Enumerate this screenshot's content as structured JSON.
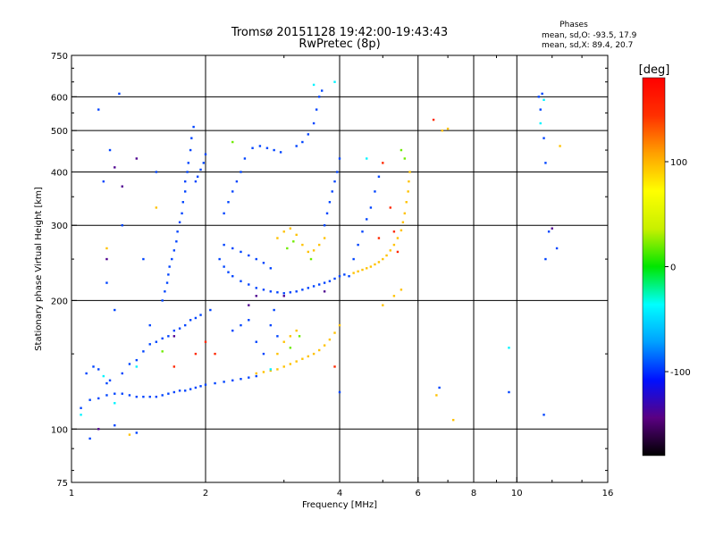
{
  "chart_data": {
    "type": "scatter",
    "title": "Tromsø 20151128 19:42:00-19:43:43",
    "subtitle": "RwPretec (8p)",
    "legend_title": "Phases",
    "legend_lines": [
      "mean, sd,O: -93.5, 17.9",
      "mean, sd,X:  89.4, 20.7"
    ],
    "xlabel": "Frequency [MHz]",
    "ylabel": "Stationary phase Virtual Height [km]",
    "xscale": "log",
    "yscale": "log",
    "xlim": [
      1,
      16
    ],
    "ylim": [
      75,
      750
    ],
    "xticks": [
      {
        "value": 1,
        "label": "1"
      },
      {
        "value": 2,
        "label": "2"
      },
      {
        "value": 4,
        "label": "4"
      },
      {
        "value": 6,
        "label": "6"
      },
      {
        "value": 8,
        "label": "8"
      },
      {
        "value": 10,
        "label": "10"
      },
      {
        "value": 16,
        "label": "16"
      }
    ],
    "xgrid": [
      2,
      4,
      6,
      8,
      10
    ],
    "yticks": [
      {
        "value": 75,
        "label": "75"
      },
      {
        "value": 100,
        "label": "100"
      },
      {
        "value": 200,
        "label": "200"
      },
      {
        "value": 300,
        "label": "300"
      },
      {
        "value": 400,
        "label": "400"
      },
      {
        "value": 500,
        "label": "500"
      },
      {
        "value": 600,
        "label": "600"
      },
      {
        "value": 750,
        "label": "750"
      }
    ],
    "ygrid": [
      100,
      200,
      300,
      400,
      500,
      600
    ],
    "grid": true,
    "colorbar": {
      "label": "[deg]",
      "range": [
        -180,
        180
      ],
      "ticks": [
        {
          "value": 100,
          "label": "100"
        },
        {
          "value": 0,
          "label": "0"
        },
        {
          "value": -100,
          "label": "-100"
        }
      ],
      "colors": [
        "#000000",
        "#5a0082",
        "#0010ff",
        "#00a0ff",
        "#00ffff",
        "#00e600",
        "#c8f000",
        "#ffff00",
        "#ffa000",
        "#ff3000",
        "#ff0000"
      ]
    },
    "series": [
      {
        "phase": -95,
        "points": [
          [
            1.05,
            112
          ],
          [
            1.1,
            117
          ],
          [
            1.15,
            118
          ],
          [
            1.2,
            120
          ],
          [
            1.25,
            121
          ],
          [
            1.3,
            121
          ],
          [
            1.35,
            120
          ],
          [
            1.4,
            119
          ],
          [
            1.45,
            119
          ],
          [
            1.5,
            119
          ],
          [
            1.55,
            119
          ],
          [
            1.6,
            120
          ],
          [
            1.65,
            121
          ],
          [
            1.7,
            122
          ],
          [
            1.75,
            123
          ],
          [
            1.8,
            123
          ],
          [
            1.85,
            124
          ],
          [
            1.9,
            125
          ],
          [
            1.95,
            126
          ],
          [
            2.0,
            127
          ],
          [
            2.1,
            128
          ],
          [
            2.2,
            129
          ],
          [
            2.3,
            130
          ],
          [
            2.4,
            131
          ],
          [
            2.5,
            132
          ],
          [
            2.6,
            133
          ],
          [
            1.08,
            135
          ],
          [
            1.12,
            140
          ],
          [
            1.15,
            138
          ],
          [
            1.2,
            128
          ],
          [
            1.22,
            130
          ],
          [
            1.3,
            135
          ],
          [
            1.35,
            142
          ],
          [
            1.4,
            145
          ],
          [
            1.45,
            152
          ],
          [
            1.5,
            158
          ],
          [
            1.55,
            160
          ],
          [
            1.6,
            163
          ],
          [
            1.65,
            165
          ],
          [
            1.7,
            170
          ],
          [
            1.75,
            172
          ],
          [
            1.8,
            175
          ],
          [
            1.85,
            180
          ],
          [
            1.9,
            182
          ],
          [
            1.95,
            185
          ],
          [
            2.05,
            190
          ],
          [
            1.6,
            200
          ],
          [
            1.62,
            210
          ],
          [
            1.64,
            220
          ],
          [
            1.65,
            230
          ],
          [
            1.66,
            240
          ],
          [
            1.68,
            250
          ],
          [
            1.7,
            262
          ],
          [
            1.72,
            275
          ],
          [
            1.73,
            290
          ],
          [
            1.75,
            305
          ],
          [
            1.77,
            320
          ],
          [
            1.78,
            340
          ],
          [
            1.8,
            360
          ],
          [
            1.8,
            380
          ],
          [
            1.82,
            400
          ],
          [
            1.83,
            420
          ],
          [
            1.85,
            450
          ],
          [
            1.86,
            480
          ],
          [
            1.88,
            510
          ],
          [
            1.9,
            380
          ],
          [
            1.92,
            390
          ],
          [
            1.95,
            405
          ],
          [
            1.98,
            420
          ],
          [
            2.0,
            440
          ],
          [
            2.15,
            250
          ],
          [
            2.2,
            240
          ],
          [
            2.25,
            233
          ],
          [
            2.3,
            228
          ],
          [
            2.4,
            222
          ],
          [
            2.5,
            218
          ],
          [
            2.6,
            214
          ],
          [
            2.7,
            212
          ],
          [
            2.8,
            210
          ],
          [
            2.9,
            209
          ],
          [
            3.0,
            208
          ],
          [
            3.1,
            209
          ],
          [
            3.2,
            210
          ],
          [
            3.3,
            212
          ],
          [
            3.4,
            214
          ],
          [
            3.5,
            216
          ],
          [
            3.6,
            218
          ],
          [
            3.7,
            220
          ],
          [
            3.8,
            222
          ],
          [
            3.9,
            225
          ],
          [
            4.0,
            228
          ],
          [
            4.1,
            230
          ],
          [
            4.2,
            228
          ],
          [
            2.2,
            270
          ],
          [
            2.3,
            265
          ],
          [
            2.4,
            260
          ],
          [
            2.5,
            255
          ],
          [
            2.6,
            250
          ],
          [
            2.7,
            245
          ],
          [
            2.8,
            238
          ],
          [
            2.2,
            320
          ],
          [
            2.25,
            340
          ],
          [
            2.3,
            360
          ],
          [
            2.35,
            380
          ],
          [
            2.4,
            400
          ],
          [
            2.45,
            430
          ],
          [
            2.55,
            455
          ],
          [
            2.65,
            460
          ],
          [
            2.75,
            455
          ],
          [
            2.85,
            450
          ],
          [
            2.95,
            445
          ],
          [
            3.2,
            460
          ],
          [
            3.3,
            470
          ],
          [
            3.4,
            490
          ],
          [
            3.5,
            520
          ],
          [
            3.55,
            560
          ],
          [
            3.6,
            600
          ],
          [
            3.65,
            620
          ],
          [
            3.7,
            300
          ],
          [
            3.75,
            320
          ],
          [
            3.8,
            340
          ],
          [
            3.85,
            360
          ],
          [
            3.9,
            380
          ],
          [
            3.95,
            400
          ],
          [
            4.0,
            430
          ],
          [
            4.3,
            250
          ],
          [
            4.4,
            270
          ],
          [
            4.5,
            290
          ],
          [
            4.6,
            310
          ],
          [
            4.7,
            330
          ],
          [
            4.8,
            360
          ],
          [
            4.9,
            390
          ],
          [
            2.3,
            170
          ],
          [
            2.4,
            175
          ],
          [
            2.5,
            180
          ],
          [
            2.6,
            160
          ],
          [
            2.7,
            150
          ],
          [
            2.8,
            175
          ],
          [
            2.85,
            190
          ],
          [
            2.9,
            165
          ],
          [
            1.1,
            95
          ],
          [
            1.25,
            102
          ],
          [
            1.4,
            98
          ],
          [
            1.2,
            220
          ],
          [
            1.25,
            190
          ],
          [
            1.3,
            300
          ],
          [
            1.18,
            380
          ],
          [
            1.22,
            450
          ],
          [
            1.15,
            560
          ],
          [
            1.28,
            610
          ],
          [
            1.5,
            175
          ],
          [
            1.45,
            250
          ],
          [
            1.55,
            400
          ],
          [
            11.2,
            600
          ],
          [
            11.3,
            560
          ],
          [
            11.4,
            610
          ],
          [
            11.5,
            480
          ],
          [
            11.6,
            420
          ],
          [
            11.6,
            250
          ],
          [
            11.8,
            290
          ],
          [
            12.3,
            265
          ],
          [
            11.5,
            108
          ],
          [
            9.6,
            122
          ],
          [
            4.0,
            122
          ],
          [
            6.7,
            125
          ]
        ]
      },
      {
        "phase": 95,
        "points": [
          [
            2.6,
            135
          ],
          [
            2.7,
            136
          ],
          [
            2.8,
            137
          ],
          [
            2.9,
            138
          ],
          [
            3.0,
            140
          ],
          [
            3.1,
            142
          ],
          [
            3.2,
            144
          ],
          [
            3.3,
            146
          ],
          [
            3.4,
            148
          ],
          [
            3.5,
            150
          ],
          [
            3.6,
            153
          ],
          [
            3.7,
            157
          ],
          [
            3.8,
            162
          ],
          [
            3.9,
            168
          ],
          [
            4.0,
            175
          ],
          [
            4.3,
            232
          ],
          [
            4.4,
            234
          ],
          [
            4.5,
            236
          ],
          [
            4.6,
            238
          ],
          [
            4.7,
            240
          ],
          [
            4.8,
            243
          ],
          [
            4.9,
            246
          ],
          [
            5.0,
            250
          ],
          [
            5.1,
            255
          ],
          [
            5.2,
            262
          ],
          [
            5.3,
            270
          ],
          [
            5.4,
            280
          ],
          [
            5.5,
            292
          ],
          [
            5.55,
            305
          ],
          [
            5.6,
            320
          ],
          [
            5.65,
            340
          ],
          [
            5.7,
            360
          ],
          [
            5.72,
            380
          ],
          [
            5.75,
            400
          ],
          [
            2.9,
            280
          ],
          [
            3.0,
            290
          ],
          [
            3.1,
            295
          ],
          [
            3.2,
            285
          ],
          [
            3.3,
            270
          ],
          [
            3.4,
            260
          ],
          [
            3.5,
            262
          ],
          [
            3.6,
            270
          ],
          [
            3.7,
            280
          ],
          [
            3.0,
            160
          ],
          [
            3.1,
            165
          ],
          [
            3.2,
            170
          ],
          [
            2.9,
            150
          ],
          [
            5.0,
            195
          ],
          [
            5.3,
            205
          ],
          [
            5.5,
            212
          ],
          [
            6.6,
            120
          ],
          [
            7.2,
            105
          ],
          [
            6.8,
            500
          ],
          [
            7.0,
            505
          ],
          [
            12.5,
            460
          ],
          [
            1.35,
            97
          ],
          [
            1.55,
            330
          ],
          [
            1.2,
            265
          ]
        ]
      },
      {
        "phase": 20,
        "points": [
          [
            3.05,
            265
          ],
          [
            3.15,
            275
          ],
          [
            3.1,
            155
          ],
          [
            3.25,
            165
          ],
          [
            5.5,
            450
          ],
          [
            5.6,
            430
          ],
          [
            1.6,
            152
          ],
          [
            3.45,
            250
          ],
          [
            2.3,
            470
          ]
        ]
      },
      {
        "phase": -40,
        "points": [
          [
            1.18,
            133
          ],
          [
            1.4,
            140
          ],
          [
            1.25,
            115
          ],
          [
            11.5,
            590
          ],
          [
            11.3,
            520
          ],
          [
            9.6,
            155
          ],
          [
            3.9,
            650
          ],
          [
            3.5,
            640
          ],
          [
            4.6,
            430
          ],
          [
            2.8,
            138
          ],
          [
            1.05,
            108
          ]
        ]
      },
      {
        "phase": 150,
        "points": [
          [
            1.7,
            140
          ],
          [
            1.9,
            150
          ],
          [
            2.0,
            160
          ],
          [
            2.1,
            150
          ],
          [
            5.3,
            290
          ],
          [
            5.2,
            330
          ],
          [
            4.9,
            280
          ],
          [
            5.4,
            260
          ],
          [
            6.5,
            530
          ],
          [
            5.0,
            420
          ],
          [
            3.9,
            140
          ]
        ]
      },
      {
        "phase": -140,
        "points": [
          [
            1.25,
            410
          ],
          [
            1.3,
            370
          ],
          [
            1.4,
            430
          ],
          [
            1.2,
            250
          ],
          [
            3.7,
            210
          ],
          [
            3.0,
            205
          ],
          [
            2.6,
            205
          ],
          [
            1.7,
            165
          ],
          [
            2.5,
            195
          ],
          [
            1.15,
            100
          ],
          [
            12.0,
            295
          ]
        ]
      }
    ]
  }
}
